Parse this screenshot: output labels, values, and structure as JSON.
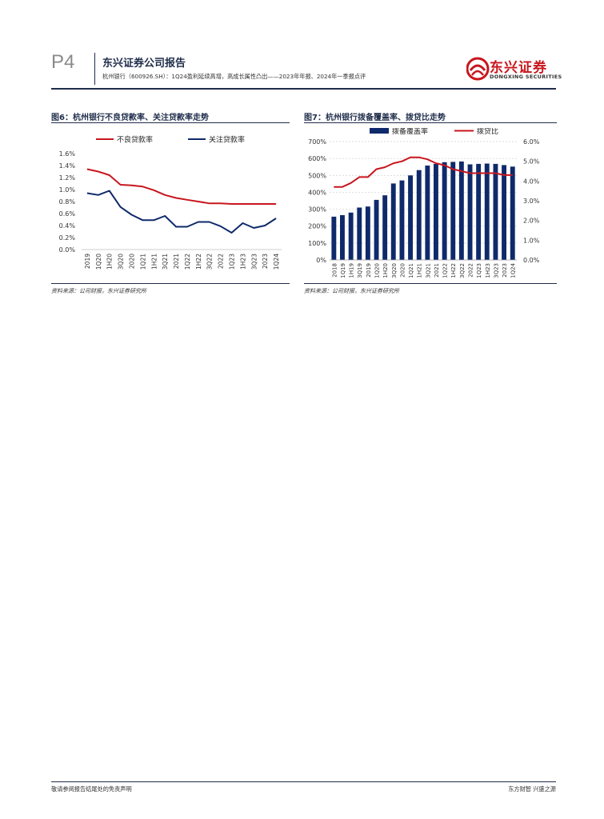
{
  "header": {
    "page_number": "P4",
    "title": "东兴证券公司报告",
    "subtitle": "杭州银行（600926.SH）：1Q24盈利延续高增，高成长属性凸出——2023年年报、2024年一季报点评",
    "logo_cn": "东兴证券",
    "logo_en": "DONGXING SECURITIES"
  },
  "figure6": {
    "title": "图6：杭州银行不良贷款率、关注贷款率走势",
    "source": "资料来源：公司财报，东兴证券研究所"
  },
  "figure7": {
    "title": "图7：杭州银行拨备覆盖率、拨贷比走势",
    "source": "资料来源：公司财报，东兴证券研究所"
  },
  "footer": {
    "left": "敬请参阅报告结尾处的免责声明",
    "right": "东方财智 兴盛之源"
  },
  "colors": {
    "red": "#c8161d",
    "navy": "#0f2a6b",
    "grid": "#cfcfcf"
  },
  "chart_data": [
    {
      "type": "line",
      "categories": [
        "2019",
        "1Q20",
        "1H20",
        "3Q20",
        "2020",
        "1Q21",
        "1H21",
        "3Q21",
        "2021",
        "1Q22",
        "1H22",
        "3Q22",
        "2022",
        "1Q23",
        "1H23",
        "3Q23",
        "2023",
        "1Q24"
      ],
      "series": [
        {
          "name": "不良贷款率",
          "color": "#c8161d",
          "values": [
            1.34,
            1.3,
            1.24,
            1.08,
            1.07,
            1.05,
            0.99,
            0.91,
            0.86,
            0.83,
            0.8,
            0.77,
            0.77,
            0.76,
            0.76,
            0.76,
            0.76,
            0.76
          ]
        },
        {
          "name": "关注贷款率",
          "color": "#0f2a6b",
          "values": [
            0.94,
            0.91,
            0.98,
            0.71,
            0.58,
            0.49,
            0.49,
            0.56,
            0.38,
            0.38,
            0.46,
            0.46,
            0.39,
            0.28,
            0.44,
            0.36,
            0.4,
            0.52
          ]
        }
      ],
      "ylim": [
        0,
        1.6
      ],
      "yticks": [
        "0.0%",
        "0.2%",
        "0.4%",
        "0.6%",
        "0.8%",
        "1.0%",
        "1.2%",
        "1.4%",
        "1.6%"
      ],
      "legend": "top"
    },
    {
      "type": "bar+line",
      "categories": [
        "2018",
        "1Q19",
        "1H19",
        "3Q19",
        "2019",
        "1Q20",
        "1H20",
        "3Q20",
        "2020",
        "1Q21",
        "1H21",
        "3Q21",
        "2021",
        "1Q22",
        "1H22",
        "3Q22",
        "2022",
        "1Q23",
        "1H23",
        "3Q23",
        "2023",
        "1Q24"
      ],
      "bar_series": {
        "name": "拨备覆盖率",
        "color": "#0f2a6b",
        "axis": "left",
        "values": [
          256,
          265,
          280,
          310,
          316,
          355,
          382,
          452,
          470,
          500,
          531,
          558,
          568,
          578,
          580,
          582,
          565,
          568,
          570,
          568,
          561,
          552
        ]
      },
      "line_series": {
        "name": "拨贷比",
        "color": "#c8161d",
        "axis": "right",
        "values": [
          3.7,
          3.7,
          3.9,
          4.2,
          4.2,
          4.6,
          4.7,
          4.9,
          5.0,
          5.2,
          5.2,
          5.1,
          4.9,
          4.8,
          4.6,
          4.5,
          4.4,
          4.4,
          4.4,
          4.4,
          4.3,
          4.3
        ]
      },
      "ylim_left": [
        0,
        700
      ],
      "ylim_right": [
        0,
        6.0
      ],
      "yticks_left": [
        "0%",
        "100%",
        "200%",
        "300%",
        "400%",
        "500%",
        "600%",
        "700%"
      ],
      "yticks_right": [
        "0.0%",
        "1.0%",
        "2.0%",
        "3.0%",
        "4.0%",
        "5.0%",
        "6.0%"
      ],
      "legend": "top"
    }
  ]
}
